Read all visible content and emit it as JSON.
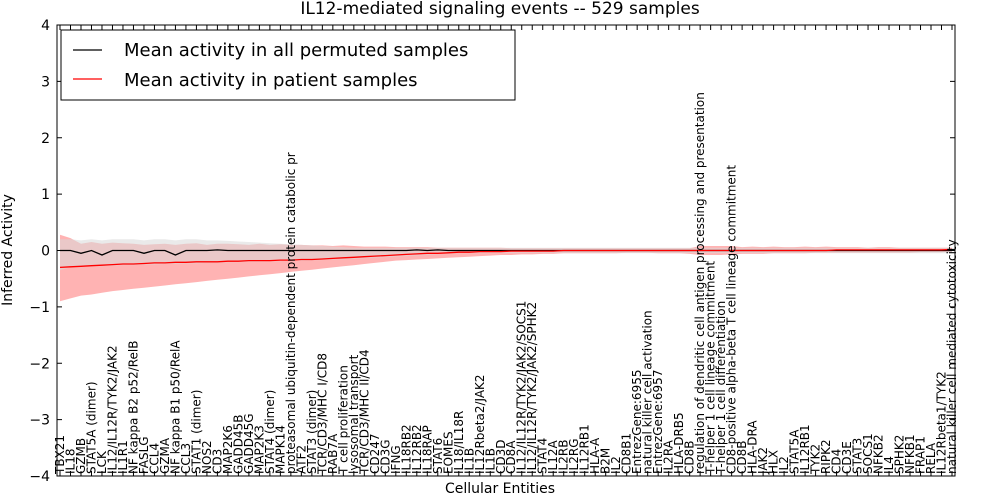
{
  "chart_data": {
    "type": "line",
    "title": "IL12-mediated signaling events -- 529 samples",
    "xlabel": "Cellular Entities",
    "ylabel": "Inferred Activity",
    "ylim": [
      -4,
      4
    ],
    "yticks": [
      "4",
      "3",
      "2",
      "1",
      "0",
      "−1",
      "−2",
      "−3",
      "−4"
    ],
    "legend": {
      "placement": "top-left",
      "entries": [
        {
          "label": "Mean activity in all permuted samples",
          "color": "#000000"
        },
        {
          "label": "Mean activity in patient samples",
          "color": "#ff0000"
        }
      ]
    },
    "categories": [
      "TBX21",
      "IL18",
      "GZMB",
      "STAT5A (dimer)",
      "LCK",
      "IL12/IL12R/TYK2/JAK2",
      "IL1R1",
      "NF kappa B2 p52/RelB",
      "FASLG",
      "CCL4",
      "GZMA",
      "NF kappa B1 p50/RelA",
      "CCL3",
      "STAT1 (dimer)",
      "NOS2",
      "CD3",
      "MAP2K6",
      "GADD45B",
      "GADD45G",
      "MAP2K3",
      "STAT4 (dimer)",
      "MAPK14",
      "proteasomal ubiquitin-dependent protein catabolic pr",
      "ATF2",
      "STAT3 (dimer)",
      "TCR/CD3/MHC I/CD8",
      "RAB7A",
      "T cell proliferation",
      "lysosomal transport",
      "TCR/CD3/MHC II/CD4",
      "CD247",
      "CD3G",
      "IFNG",
      "IL18RB2",
      "IL12RB2",
      "IL18RAP",
      "STAT6",
      "EOMES",
      "IL18/IL18R",
      "IL1B",
      "IL12Rbeta2/JAK2",
      "IL1B",
      "CD3D",
      "CD8A",
      "IL12/IL12R/TYK2/JAK2/SOCS1",
      "IL12/IL12R/TYK2/JAK2/SPHK2",
      "STAT4",
      "IL12A",
      "IL2RB",
      "IL2RG",
      "IL12RB1",
      "HLA-A",
      "B2M",
      "IL2",
      "CD8B1",
      "EntrezGene:6955",
      "natural killer cell activation",
      "EntrezGene:6957",
      "IL2RA",
      "HLA-DRB5",
      "CD8B",
      "regulation of dendritic cell antigen processing and presentation",
      "T-helper 1 cell lineage commitment",
      "T-helper 1 cell differentiation",
      "CD8-positive alpha-beta T cell lineage commitment",
      "CD8B",
      "HLA-DRA",
      "JAK2",
      "HLX",
      "IL2",
      "STAT5A",
      "IL12RB1",
      "TYK2",
      "RIPK2",
      "CD4",
      "CD3E",
      "STAT3",
      "SOCS1",
      "NFKB2",
      "IL4",
      "SPHK2",
      "NFKB1",
      "FRAP1",
      "RELA",
      "IL12Rbeta1/TYK2",
      "natural killer cell mediated cytotoxicity"
    ],
    "series": [
      {
        "name": "Mean activity in patient samples",
        "values": [
          -0.3,
          -0.29,
          -0.28,
          -0.27,
          -0.26,
          -0.25,
          -0.24,
          -0.24,
          -0.23,
          -0.22,
          -0.22,
          -0.21,
          -0.21,
          -0.2,
          -0.2,
          -0.2,
          -0.19,
          -0.19,
          -0.18,
          -0.18,
          -0.18,
          -0.17,
          -0.17,
          -0.16,
          -0.16,
          -0.15,
          -0.14,
          -0.13,
          -0.12,
          -0.11,
          -0.1,
          -0.09,
          -0.08,
          -0.07,
          -0.06,
          -0.05,
          -0.05,
          -0.04,
          -0.03,
          -0.03,
          -0.02,
          -0.02,
          -0.02,
          -0.01,
          -0.01,
          -0.01,
          -0.01,
          -0.01,
          0.0,
          0.0,
          0.0,
          0.0,
          0.0,
          0.0,
          0.0,
          0.0,
          0.0,
          0.0,
          0.0,
          0.0,
          0.0,
          0.0,
          0.0,
          0.0,
          0.0,
          0.0,
          0.0,
          0.0,
          0.0,
          0.0,
          0.0,
          0.0,
          0.0,
          0.0,
          0.01,
          0.01,
          0.01,
          0.01,
          0.01,
          0.01,
          0.01,
          0.01,
          0.01,
          0.01,
          0.01,
          0.02
        ]
      },
      {
        "name": "Mean activity in all permuted samples",
        "values": [
          0.0,
          0.0,
          -0.05,
          0.0,
          -0.08,
          0.0,
          0.0,
          0.0,
          -0.05,
          0.0,
          0.0,
          -0.08,
          0.0,
          0.0,
          0.0,
          0.01,
          0.0,
          0.0,
          0.0,
          0.0,
          0.0,
          0.0,
          0.0,
          0.0,
          0.0,
          0.0,
          0.0,
          0.0,
          0.0,
          0.0,
          0.0,
          0.0,
          0.0,
          0.0,
          0.01,
          0.0,
          0.01,
          0.0,
          0.0,
          0.0,
          0.0,
          0.0,
          0.0,
          0.0,
          0.0,
          0.0,
          0.0,
          0.0,
          0.0,
          0.0,
          0.0,
          0.0,
          0.0,
          0.0,
          0.0,
          0.0,
          0.0,
          0.0,
          0.0,
          0.0,
          0.0,
          0.0,
          0.0,
          0.0,
          0.0,
          0.0,
          0.0,
          0.0,
          0.0,
          0.0,
          0.0,
          0.0,
          0.0,
          0.0,
          0.0,
          0.0,
          0.0,
          0.0,
          0.0,
          0.0,
          0.0,
          0.0,
          0.0,
          0.0,
          0.0,
          0.0
        ]
      }
    ],
    "bands": [
      {
        "name": "patient samples spread",
        "color": "#ff9999",
        "lower": [
          -0.9,
          -0.85,
          -0.8,
          -0.78,
          -0.75,
          -0.72,
          -0.7,
          -0.68,
          -0.66,
          -0.64,
          -0.62,
          -0.6,
          -0.58,
          -0.56,
          -0.54,
          -0.52,
          -0.5,
          -0.48,
          -0.46,
          -0.44,
          -0.42,
          -0.4,
          -0.38,
          -0.36,
          -0.34,
          -0.32,
          -0.3,
          -0.28,
          -0.26,
          -0.24,
          -0.22,
          -0.2,
          -0.18,
          -0.17,
          -0.16,
          -0.15,
          -0.14,
          -0.13,
          -0.12,
          -0.11,
          -0.1,
          -0.09,
          -0.08,
          -0.08,
          -0.07,
          -0.07,
          -0.06,
          -0.06,
          -0.05,
          -0.05,
          -0.05,
          -0.05,
          -0.05,
          -0.05,
          -0.04,
          -0.04,
          -0.04,
          -0.05,
          -0.05,
          -0.05,
          -0.06,
          -0.08,
          -0.08,
          -0.08,
          -0.07,
          -0.06,
          -0.06,
          -0.06,
          -0.05,
          -0.05,
          -0.05,
          -0.05,
          -0.04,
          -0.04,
          -0.04,
          -0.04,
          -0.04,
          -0.04,
          -0.04,
          -0.04,
          -0.04,
          -0.04,
          -0.03,
          -0.03,
          -0.03,
          -0.02
        ],
        "upper": [
          0.28,
          0.22,
          0.12,
          0.15,
          0.12,
          0.14,
          0.13,
          0.12,
          0.1,
          0.11,
          0.12,
          0.1,
          0.12,
          0.13,
          0.1,
          0.12,
          0.12,
          0.11,
          0.1,
          0.12,
          0.1,
          0.11,
          0.1,
          0.1,
          0.09,
          0.09,
          0.08,
          0.09,
          0.08,
          0.07,
          0.07,
          0.07,
          0.06,
          0.06,
          0.06,
          0.06,
          0.05,
          0.05,
          0.05,
          0.05,
          0.05,
          0.05,
          0.05,
          0.04,
          0.04,
          0.04,
          0.04,
          0.04,
          0.04,
          0.04,
          0.04,
          0.04,
          0.04,
          0.04,
          0.04,
          0.04,
          0.04,
          0.04,
          0.04,
          0.04,
          0.04,
          0.08,
          0.08,
          0.08,
          0.08,
          0.06,
          0.07,
          0.06,
          0.07,
          0.06,
          0.06,
          0.07,
          0.06,
          0.07,
          0.06,
          0.06,
          0.06,
          0.05,
          0.06,
          0.06,
          0.05,
          0.05,
          0.05,
          0.05,
          0.05,
          0.05
        ]
      },
      {
        "name": "permuted samples spread",
        "color": "#d9d9d9",
        "lower": [
          -0.35,
          -0.3,
          -0.3,
          -0.28,
          -0.28,
          -0.27,
          -0.26,
          -0.26,
          -0.25,
          -0.25,
          -0.24,
          -0.24,
          -0.23,
          -0.23,
          -0.22,
          -0.22,
          -0.21,
          -0.21,
          -0.2,
          -0.2,
          -0.19,
          -0.19,
          -0.18,
          -0.18,
          -0.17,
          -0.17,
          -0.16,
          -0.16,
          -0.15,
          -0.14,
          -0.13,
          -0.12,
          -0.11,
          -0.1,
          -0.09,
          -0.08,
          -0.07,
          -0.06,
          -0.05,
          -0.05,
          -0.05,
          -0.05,
          -0.05,
          -0.05,
          -0.05,
          -0.05,
          -0.05,
          -0.05,
          -0.05,
          -0.05,
          -0.05,
          -0.05,
          -0.05,
          -0.05,
          -0.05,
          -0.05,
          -0.05,
          -0.05,
          -0.05,
          -0.05,
          -0.05,
          -0.05,
          -0.05,
          -0.05,
          -0.05,
          -0.05,
          -0.05,
          -0.05,
          -0.05,
          -0.05,
          -0.05,
          -0.05,
          -0.05,
          -0.05,
          -0.05,
          -0.05,
          -0.05,
          -0.05,
          -0.05,
          -0.05,
          -0.05,
          -0.05,
          -0.05,
          -0.05,
          -0.05,
          -0.05
        ],
        "upper": [
          0.2,
          0.2,
          0.18,
          0.2,
          0.18,
          0.2,
          0.2,
          0.2,
          0.18,
          0.2,
          0.2,
          0.18,
          0.2,
          0.2,
          0.18,
          0.18,
          0.17,
          0.16,
          0.15,
          0.14,
          0.13,
          0.12,
          0.11,
          0.1,
          0.09,
          0.08,
          0.07,
          0.06,
          0.05,
          0.05,
          0.05,
          0.05,
          0.05,
          0.05,
          0.05,
          0.05,
          0.05,
          0.05,
          0.05,
          0.05,
          0.05,
          0.05,
          0.05,
          0.05,
          0.05,
          0.05,
          0.05,
          0.05,
          0.05,
          0.05,
          0.05,
          0.05,
          0.05,
          0.05,
          0.05,
          0.05,
          0.05,
          0.05,
          0.05,
          0.05,
          0.05,
          0.05,
          0.05,
          0.05,
          0.05,
          0.05,
          0.05,
          0.05,
          0.05,
          0.05,
          0.05,
          0.05,
          0.05,
          0.05,
          0.05,
          0.05,
          0.05,
          0.05,
          0.05,
          0.05,
          0.05,
          0.05,
          0.05,
          0.05,
          0.05,
          0.05
        ]
      }
    ]
  }
}
